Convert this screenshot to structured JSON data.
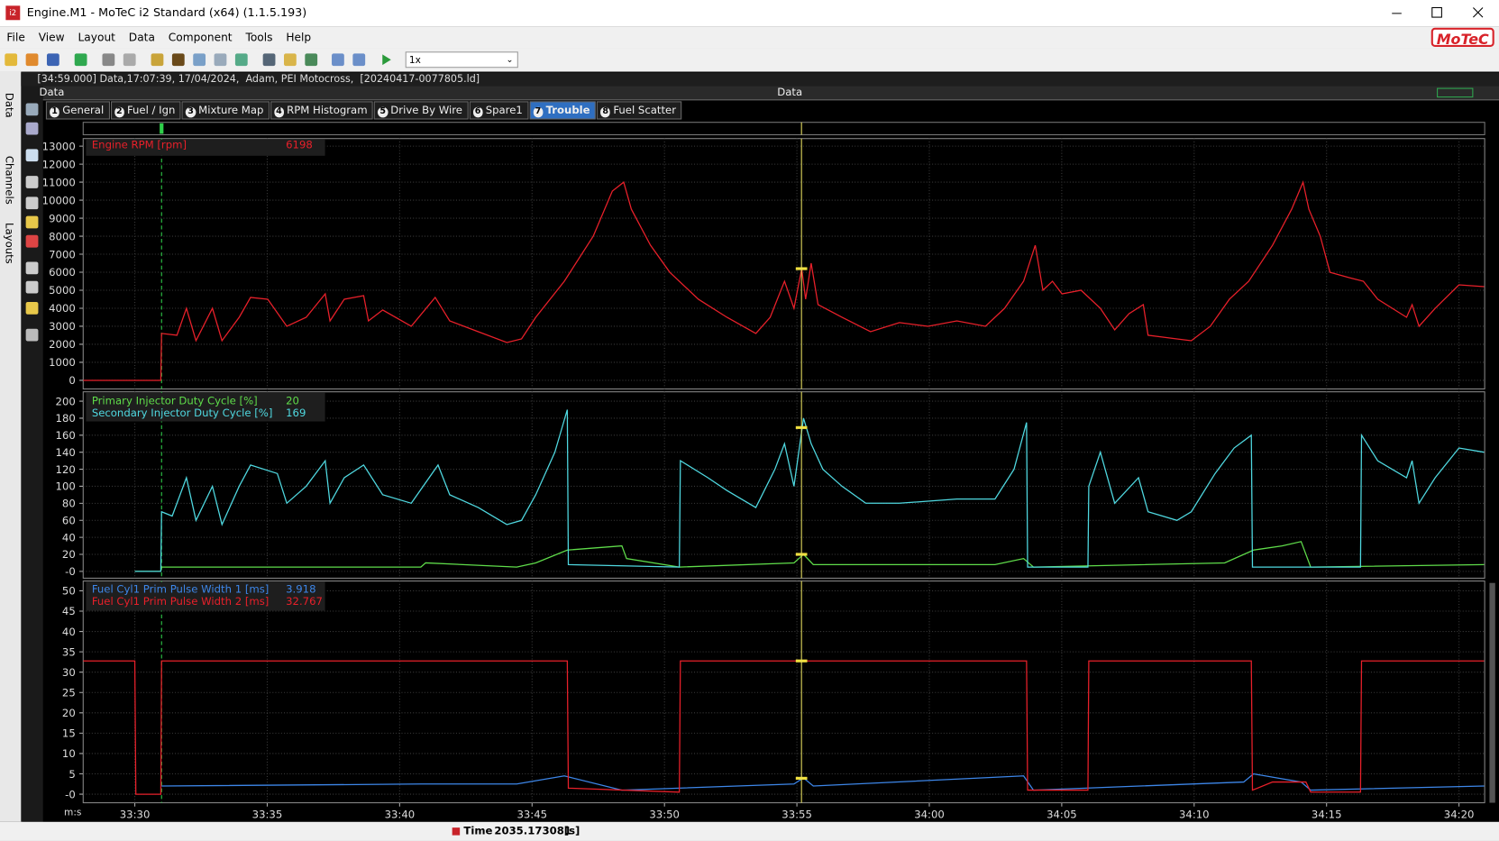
{
  "window": {
    "title": "Engine.M1 - MoTeC i2 Standard (x64) (1.1.5.193)"
  },
  "menu": [
    "File",
    "View",
    "Layout",
    "Data",
    "Component",
    "Tools",
    "Help"
  ],
  "logo": "MoTeC",
  "playback_speed": "1x",
  "side_tabs": [
    "Data",
    "Channels",
    "Layouts"
  ],
  "session": "[34:59.000] Data,17:07:39, 17/04/2024,  Adam, PEI Motocross,  [20240417-0077805.ld]",
  "workbook": {
    "left": "Data",
    "center": "Data"
  },
  "tabs": [
    {
      "key": "1",
      "label": "General"
    },
    {
      "key": "2",
      "label": "Fuel / Ign"
    },
    {
      "key": "3",
      "label": "Mixture Map"
    },
    {
      "key": "4",
      "label": "RPM Histogram"
    },
    {
      "key": "5",
      "label": "Drive By Wire"
    },
    {
      "key": "6",
      "label": "Spare1"
    },
    {
      "key": "7",
      "label": "Trouble"
    },
    {
      "key": "8",
      "label": "Fuel Scatter"
    }
  ],
  "active_tab": 6,
  "time_axis": {
    "label": "m:s",
    "xlim": [
      2008.05,
      2060.97
    ],
    "xticks": [
      {
        "value": 2010,
        "label": "33:30"
      },
      {
        "value": 2015,
        "label": "33:35"
      },
      {
        "value": 2020,
        "label": "33:40"
      },
      {
        "value": 2025,
        "label": "33:45"
      },
      {
        "value": 2030,
        "label": "33:50"
      },
      {
        "value": 2035,
        "label": "33:55"
      },
      {
        "value": 2040,
        "label": "34:00"
      },
      {
        "value": 2045,
        "label": "34:05"
      },
      {
        "value": 2050,
        "label": "34:10"
      },
      {
        "value": 2055,
        "label": "34:15"
      },
      {
        "value": 2060,
        "label": "34:20"
      }
    ]
  },
  "cursor": {
    "label": "Time",
    "value": 2035.173081,
    "unit": "[s]"
  },
  "graphs": [
    {
      "ylim": [
        -480,
        13420
      ],
      "yticks": [
        0,
        1000,
        2000,
        3000,
        4000,
        5000,
        6000,
        7000,
        8000,
        9000,
        10000,
        11000,
        12000,
        13000
      ],
      "series": [
        {
          "name": "Engine RPM [rpm]",
          "color": "#e8202a",
          "cursor_value": 6198,
          "x": [
            2008.05,
            2010.98,
            2011.01,
            2011.59,
            2011.95,
            2012.31,
            2012.93,
            2013.29,
            2013.94,
            2014.37,
            2015.02,
            2015.74,
            2016.47,
            2017.19,
            2017.37,
            2017.91,
            2018.64,
            2018.82,
            2019.36,
            2020.44,
            2021.34,
            2021.89,
            2022.97,
            2024.05,
            2024.6,
            2025.14,
            2026.22,
            2027.31,
            2028.03,
            2028.46,
            2028.75,
            2029.47,
            2030.2,
            2031.28,
            2032.36,
            2033.45,
            2033.99,
            2034.53,
            2034.89,
            2035.18,
            2035.33,
            2035.54,
            2035.8,
            2036.7,
            2037.78,
            2038.87,
            2039.95,
            2041.04,
            2042.12,
            2042.84,
            2043.56,
            2044.0,
            2044.29,
            2044.65,
            2045.01,
            2045.73,
            2046.46,
            2047.0,
            2047.54,
            2048.08,
            2048.26,
            2049.35,
            2049.89,
            2050.61,
            2051.33,
            2052.06,
            2052.96,
            2053.68,
            2054.11,
            2054.33,
            2054.76,
            2055.13,
            2055.85,
            2056.39,
            2056.93,
            2058.02,
            2058.23,
            2058.49,
            2059.1,
            2060.0,
            2060.95
          ],
          "values": [
            0,
            0,
            2600,
            2500,
            4000,
            2200,
            4000,
            2200,
            3500,
            4600,
            4500,
            3000,
            3500,
            4800,
            3300,
            4500,
            4700,
            3300,
            3900,
            3000,
            4600,
            3300,
            2700,
            2100,
            2300,
            3500,
            5500,
            8000,
            10500,
            11000,
            9500,
            7500,
            6000,
            4500,
            3500,
            2600,
            3500,
            5500,
            4000,
            6200,
            4500,
            6500,
            4200,
            3500,
            2700,
            3200,
            3000,
            3300,
            3000,
            4000,
            5500,
            7500,
            5000,
            5500,
            4800,
            5000,
            4000,
            2800,
            3700,
            4200,
            2500,
            2300,
            2200,
            3000,
            4500,
            5500,
            7500,
            9500,
            11000,
            9500,
            8000,
            6000,
            5700,
            5500,
            4500,
            3500,
            4200,
            3000,
            4000,
            5300,
            5200
          ]
        }
      ]
    },
    {
      "ylim": [
        -8,
        211
      ],
      "yticks": [
        {
          "value": 0,
          "label": "-0"
        },
        20,
        40,
        60,
        80,
        100,
        120,
        140,
        160,
        180,
        200
      ],
      "series": [
        {
          "name": "Primary Injector Duty Cycle [%]",
          "color": "#5fdc4a",
          "cursor_value": 20,
          "x": [
            2010.0,
            2010.98,
            2011.01,
            2020.8,
            2020.98,
            2024.42,
            2025.14,
            2026.33,
            2028.39,
            2028.57,
            2030.56,
            2034.89,
            2035.25,
            2035.62,
            2042.48,
            2043.56,
            2043.93,
            2051.15,
            2052.24,
            2053.32,
            2054.04,
            2054.4,
            2060.95
          ],
          "values": [
            0,
            0,
            5,
            5,
            10,
            5,
            10,
            25,
            30,
            15,
            5,
            10,
            20,
            8,
            8,
            15,
            5,
            10,
            25,
            30,
            35,
            5,
            8
          ]
        },
        {
          "name": "Secondary Injector Duty Cycle [%]",
          "color": "#4fd8e0",
          "cursor_value": 169,
          "x": [
            2010.0,
            2010.98,
            2011.01,
            2011.41,
            2011.95,
            2012.31,
            2012.93,
            2013.29,
            2013.94,
            2014.37,
            2015.38,
            2015.74,
            2016.47,
            2017.19,
            2017.37,
            2017.91,
            2018.64,
            2019.36,
            2020.44,
            2021.45,
            2021.89,
            2022.97,
            2024.05,
            2024.6,
            2025.14,
            2025.86,
            2026.33,
            2026.37,
            2030.56,
            2030.6,
            2031.64,
            2032.36,
            2033.45,
            2034.17,
            2034.53,
            2034.89,
            2035.25,
            2035.54,
            2035.98,
            2036.7,
            2037.6,
            2038.87,
            2041.04,
            2042.48,
            2043.2,
            2043.67,
            2043.71,
            2045.99,
            2046.02,
            2046.46,
            2047.0,
            2047.9,
            2048.26,
            2049.35,
            2049.89,
            2050.79,
            2051.51,
            2052.16,
            2052.2,
            2056.28,
            2056.32,
            2056.93,
            2058.02,
            2058.23,
            2058.49,
            2059.1,
            2060.0,
            2060.95
          ],
          "values": [
            0,
            0,
            70,
            65,
            110,
            60,
            100,
            55,
            100,
            125,
            115,
            80,
            100,
            130,
            80,
            110,
            125,
            90,
            80,
            125,
            90,
            75,
            55,
            60,
            90,
            140,
            190,
            8,
            5,
            130,
            110,
            95,
            75,
            120,
            150,
            100,
            180,
            150,
            120,
            100,
            80,
            80,
            85,
            85,
            120,
            175,
            5,
            5,
            100,
            140,
            80,
            110,
            70,
            60,
            70,
            115,
            145,
            160,
            5,
            5,
            160,
            130,
            110,
            130,
            80,
            110,
            145,
            140
          ]
        }
      ]
    },
    {
      "ylim": [
        -2.1,
        52.4
      ],
      "yticks": [
        {
          "value": 0,
          "label": "-0"
        },
        5,
        10,
        15,
        20,
        25,
        30,
        35,
        40,
        45,
        50
      ],
      "series": [
        {
          "name": "Fuel Cyl1 Prim Pulse Width 1 [ms]",
          "color": "#3d86e8",
          "cursor_value": 3.918,
          "x": [
            2011.01,
            2020.8,
            2024.42,
            2026.22,
            2028.39,
            2034.89,
            2035.25,
            2035.62,
            2043.56,
            2043.93,
            2051.87,
            2052.24,
            2054.04,
            2054.4,
            2060.95
          ],
          "values": [
            2,
            2.5,
            2.5,
            4.5,
            1,
            2.5,
            4,
            2,
            4.5,
            1,
            3,
            5,
            3,
            1,
            2
          ]
        },
        {
          "name": "Fuel Cyl1 Prim Pulse Width 2 [ms]",
          "color": "#e8202a",
          "cursor_value": 32.767,
          "x": [
            2008.05,
            2010.0,
            2010.04,
            2010.98,
            2011.01,
            2026.33,
            2026.37,
            2030.56,
            2030.6,
            2043.67,
            2043.71,
            2045.99,
            2046.02,
            2052.16,
            2052.2,
            2052.96,
            2054.22,
            2054.4,
            2056.28,
            2056.32,
            2060.95
          ],
          "values": [
            32.767,
            32.767,
            0,
            0,
            32.767,
            32.767,
            1.5,
            0.5,
            32.767,
            32.767,
            1,
            1,
            32.767,
            32.767,
            1,
            3,
            3,
            0.5,
            0.5,
            32.767,
            32.767
          ]
        }
      ]
    }
  ]
}
